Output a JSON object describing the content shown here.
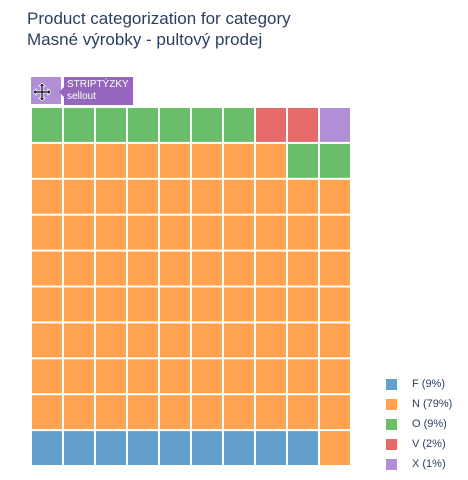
{
  "title": {
    "line1": "Product categorization for category",
    "line2": "Masné výrobky - pultový prodej"
  },
  "chart_data": {
    "type": "waffle",
    "grid": {
      "rows": 10,
      "cols": 10
    },
    "categories": [
      {
        "name": "F",
        "percent": 9,
        "color": "#64a0cc"
      },
      {
        "name": "N",
        "percent": 79,
        "color": "#ffa352"
      },
      {
        "name": "O",
        "percent": 9,
        "color": "#6abe6a"
      },
      {
        "name": "V",
        "percent": 2,
        "color": "#e56a6a"
      },
      {
        "name": "X",
        "percent": 1,
        "color": "#b18fd6"
      }
    ],
    "legend": [
      {
        "label": "F (9%)",
        "color": "#64a0cc"
      },
      {
        "label": "N (79%)",
        "color": "#ffa352"
      },
      {
        "label": "O (9%)",
        "color": "#6abe6a"
      },
      {
        "label": "V (2%)",
        "color": "#e56a6a"
      },
      {
        "label": "X (1%)",
        "color": "#b18fd6"
      }
    ],
    "legend_position": "bottom-right",
    "hover": {
      "line1": "STRIPTÝZKY",
      "line2": "sellout",
      "category": "X"
    }
  }
}
